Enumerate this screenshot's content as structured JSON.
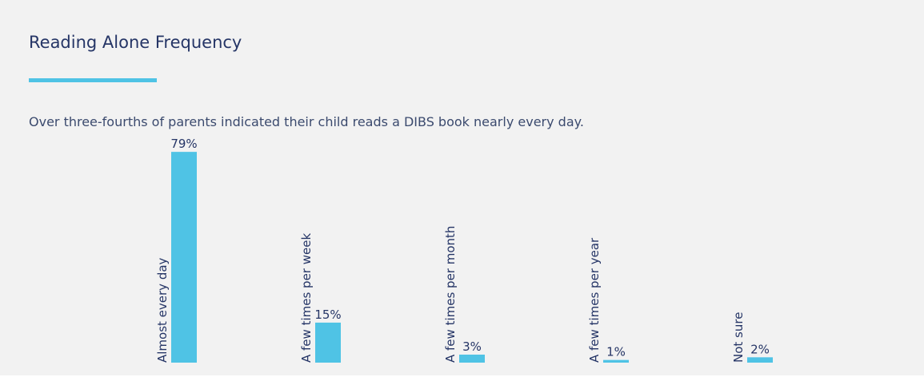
{
  "chart_data": {
    "type": "bar",
    "title": "Reading Alone Frequency",
    "subtitle": "Over three-fourths of parents indicated their child reads a DIBS book nearly every day.",
    "categories": [
      "Almost every day",
      "A few times per week",
      "A few times per month",
      "A few times per year",
      "Not sure"
    ],
    "values": [
      79,
      15,
      3,
      1,
      2
    ],
    "value_labels": [
      "79%",
      "15%",
      "3%",
      "1%",
      "2%"
    ],
    "color": "#4fc3e5"
  }
}
